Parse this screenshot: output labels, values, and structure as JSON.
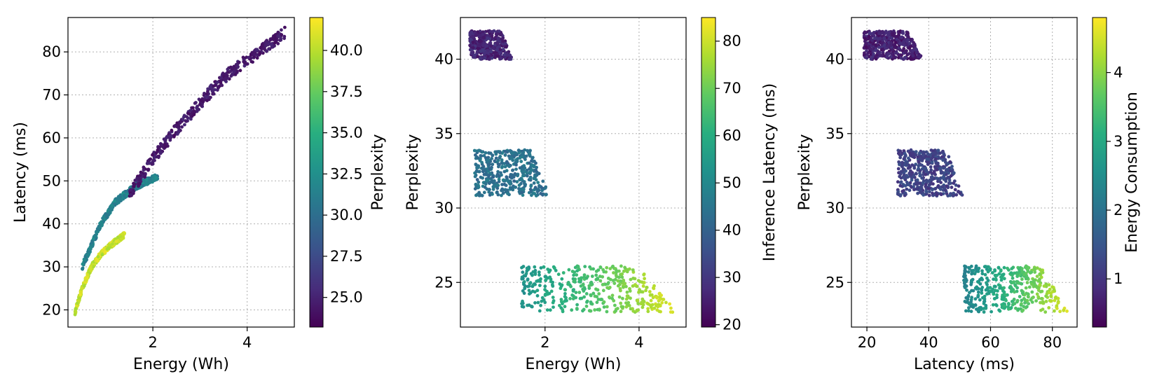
{
  "chart_data": [
    {
      "type": "scatter",
      "xlabel": "Energy (Wh)",
      "ylabel": "Latency (ms)",
      "colorbar_label": "Perplexity",
      "xlim": [
        0.2,
        5.0
      ],
      "ylim": [
        16,
        88
      ],
      "xticks": [
        2,
        4
      ],
      "yticks": [
        20,
        30,
        40,
        50,
        60,
        70,
        80
      ],
      "colorbar_range": [
        23.2,
        42.0
      ],
      "colorbar_ticks": [
        "25.0",
        "27.5",
        "30.0",
        "32.5",
        "35.0",
        "37.5",
        "40.0"
      ],
      "colormap": "viridis",
      "grid": true,
      "clusters": [
        {
          "x_range": [
            0.35,
            1.4
          ],
          "y_range": [
            19.5,
            38
          ],
          "color_value": 40.5,
          "description_curve": [
            [
              0.35,
              19.5
            ],
            [
              0.5,
              25
            ],
            [
              0.7,
              30
            ],
            [
              0.9,
              33
            ],
            [
              1.1,
              35
            ],
            [
              1.4,
              37.5
            ]
          ]
        },
        {
          "x_range": [
            0.5,
            2.1
          ],
          "y_range": [
            30,
            51
          ],
          "color_value": 31.5,
          "description_curve": [
            [
              0.5,
              30
            ],
            [
              0.7,
              35
            ],
            [
              0.9,
              40
            ],
            [
              1.2,
              45
            ],
            [
              1.6,
              48.5
            ],
            [
              2.1,
              51
            ]
          ]
        },
        {
          "x_range": [
            1.5,
            4.8
          ],
          "y_range": [
            45,
            85
          ],
          "color_value": 24.5,
          "description_curve": [
            [
              1.5,
              47
            ],
            [
              2.0,
              55
            ],
            [
              2.5,
              62
            ],
            [
              3.0,
              68
            ],
            [
              3.5,
              74
            ],
            [
              4.0,
              78
            ],
            [
              4.8,
              84.5
            ]
          ]
        }
      ]
    },
    {
      "type": "scatter",
      "xlabel": "Energy (Wh)",
      "ylabel": "Perplexity",
      "colorbar_label": "Inference Latency (ms)",
      "xlim": [
        0.2,
        5.0
      ],
      "ylim": [
        22.0,
        42.8
      ],
      "xticks": [
        2,
        4
      ],
      "yticks": [
        25,
        30,
        35,
        40
      ],
      "colorbar_range": [
        19.5,
        85.0
      ],
      "colorbar_ticks": [
        "20",
        "30",
        "40",
        "50",
        "60",
        "70",
        "80"
      ],
      "colormap": "viridis",
      "grid": true,
      "clusters": [
        {
          "x_range": [
            0.4,
            1.3
          ],
          "y_range": [
            40.0,
            41.9
          ],
          "color_value": 26
        },
        {
          "x_range": [
            0.5,
            2.1
          ],
          "y_range": [
            30.8,
            33.9
          ],
          "color_value": 44
        },
        {
          "x_range": [
            1.5,
            4.8
          ],
          "y_range": [
            23.0,
            26.1
          ],
          "color_value": 68
        }
      ]
    },
    {
      "type": "scatter",
      "xlabel": "Latency (ms)",
      "ylabel": "Perplexity",
      "colorbar_label": "Energy Consumption",
      "xlim": [
        15,
        88
      ],
      "ylim": [
        22.0,
        42.8
      ],
      "xticks": [
        20,
        40,
        60,
        80
      ],
      "yticks": [
        25,
        30,
        35,
        40
      ],
      "colorbar_range": [
        0.3,
        4.8
      ],
      "colorbar_ticks": [
        "1",
        "2",
        "3",
        "4"
      ],
      "colormap": "viridis",
      "grid": true,
      "clusters": [
        {
          "x_range": [
            19,
            38
          ],
          "y_range": [
            40.0,
            41.9
          ],
          "color_value": 0.7
        },
        {
          "x_range": [
            30,
            51
          ],
          "y_range": [
            30.8,
            33.9
          ],
          "color_value": 1.2
        },
        {
          "x_range": [
            51,
            85
          ],
          "y_range": [
            23.0,
            26.1
          ],
          "color_value": 3.4
        }
      ]
    }
  ]
}
